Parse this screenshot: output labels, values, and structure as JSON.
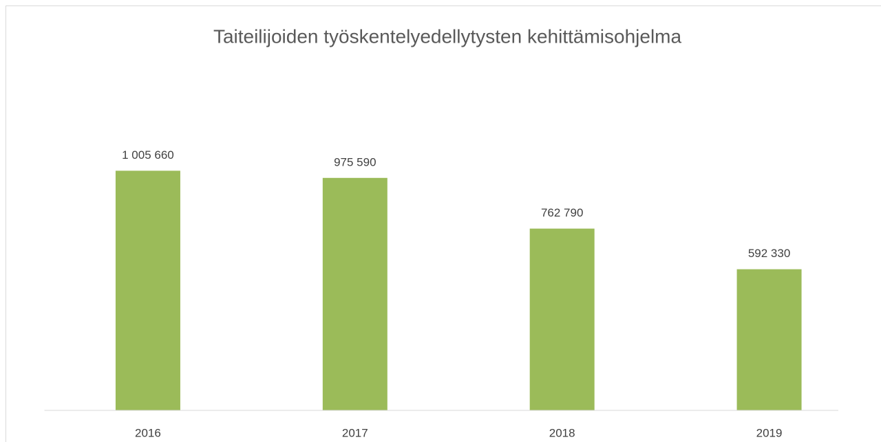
{
  "chart_data": {
    "type": "bar",
    "title": "Taiteilijoiden työskentelyedellytysten kehittämisohjelma",
    "categories": [
      "2016",
      "2017",
      "2018",
      "2019"
    ],
    "values": [
      1005660,
      975590,
      762790,
      592330
    ],
    "value_labels": [
      "1 005 660",
      "975 590",
      "762 790",
      "592 330"
    ],
    "color": "#9bbb59",
    "ylim": [
      0,
      1200000
    ]
  }
}
